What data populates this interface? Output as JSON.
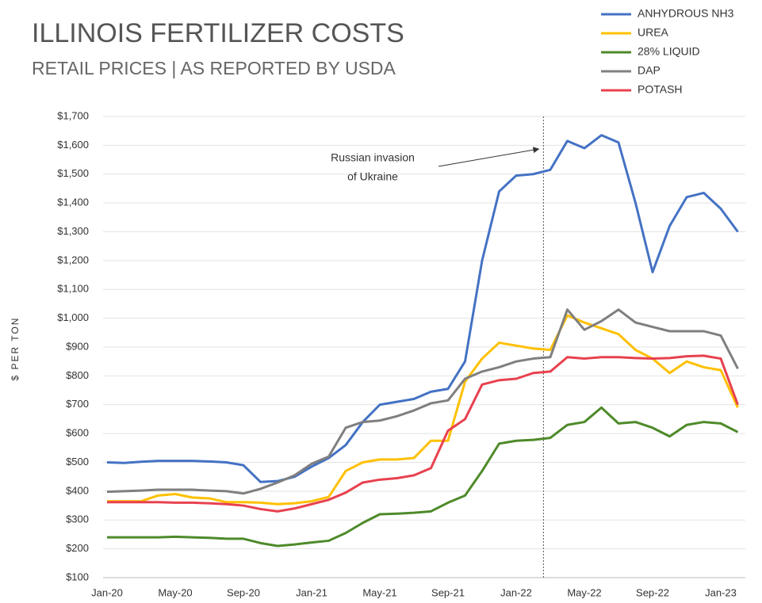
{
  "chart_data": {
    "type": "line",
    "title": "ILLINOIS FERTILIZER COSTS",
    "subtitle": "RETAIL PRICES | AS REPORTED BY USDA",
    "y_label": "$ PER TON",
    "categories": [
      "Jan-20",
      null,
      null,
      null,
      "May-20",
      null,
      null,
      null,
      "Sep-20",
      null,
      null,
      null,
      "Jan-21",
      null,
      null,
      null,
      "May-21",
      null,
      null,
      null,
      "Sep-21",
      null,
      null,
      null,
      "Jan-22",
      null,
      null,
      null,
      "May-22",
      null,
      null,
      null,
      "Sep-22",
      null,
      null,
      null,
      "Jan-23",
      null
    ],
    "ylim": [
      100,
      1700
    ],
    "yticks": [
      {
        "value": 100,
        "label": "$100"
      },
      {
        "value": 200,
        "label": "$200"
      },
      {
        "value": 300,
        "label": "$300"
      },
      {
        "value": 400,
        "label": "$400"
      },
      {
        "value": 500,
        "label": "$500"
      },
      {
        "value": 600,
        "label": "$600"
      },
      {
        "value": 700,
        "label": "$700"
      },
      {
        "value": 800,
        "label": "$800"
      },
      {
        "value": 900,
        "label": "$900"
      },
      {
        "value": 1000,
        "label": "$1,000"
      },
      {
        "value": 1100,
        "label": "$1,100"
      },
      {
        "value": 1200,
        "label": "$1,200"
      },
      {
        "value": 1300,
        "label": "$1,300"
      },
      {
        "value": 1400,
        "label": "$1,400"
      },
      {
        "value": 1500,
        "label": "$1,500"
      },
      {
        "value": 1600,
        "label": "$1,600"
      },
      {
        "value": 1700,
        "label": "$1,700"
      }
    ],
    "grid": true,
    "legend": "top-right",
    "annotation": {
      "lines": [
        "Russian invasion",
        "of Ukraine"
      ],
      "x": 25.6
    },
    "series": [
      {
        "name": "ANHYDROUS NH3",
        "color": "#4472c4",
        "values": [
          500,
          498,
          502,
          505,
          505,
          505,
          503,
          500,
          490,
          432,
          435,
          450,
          485,
          515,
          560,
          640,
          700,
          710,
          720,
          745,
          755,
          850,
          1200,
          1440,
          1495,
          1500,
          1515,
          1615,
          1590,
          1635,
          1610,
          1400,
          1160,
          1320,
          1420,
          1435,
          1380,
          1300
        ]
      },
      {
        "name": "UREA",
        "color": "#ffc000",
        "values": [
          365,
          365,
          365,
          385,
          390,
          378,
          375,
          362,
          362,
          360,
          355,
          358,
          365,
          380,
          470,
          500,
          510,
          510,
          515,
          575,
          575,
          780,
          860,
          915,
          905,
          895,
          890,
          1010,
          985,
          965,
          945,
          890,
          860,
          810,
          850,
          830,
          820,
          690
        ]
      },
      {
        "name": "28% LIQUID",
        "color": "#4e8a2a",
        "values": [
          240,
          240,
          240,
          240,
          242,
          240,
          238,
          235,
          235,
          220,
          210,
          215,
          222,
          228,
          255,
          290,
          320,
          322,
          325,
          330,
          360,
          385,
          470,
          565,
          575,
          578,
          585,
          630,
          640,
          690,
          635,
          640,
          620,
          590,
          630,
          640,
          635,
          605
        ]
      },
      {
        "name": "DAP",
        "color": "#7f7f7f",
        "values": [
          398,
          400,
          402,
          405,
          405,
          405,
          402,
          400,
          392,
          408,
          430,
          455,
          495,
          520,
          620,
          640,
          645,
          660,
          680,
          705,
          715,
          790,
          815,
          830,
          850,
          860,
          865,
          1030,
          960,
          990,
          1030,
          985,
          970,
          955,
          955,
          955,
          940,
          825
        ]
      },
      {
        "name": "POTASH",
        "color": "#e8414f",
        "values": [
          362,
          362,
          362,
          362,
          360,
          360,
          358,
          355,
          350,
          338,
          330,
          340,
          355,
          370,
          395,
          430,
          440,
          445,
          455,
          480,
          610,
          650,
          770,
          785,
          790,
          810,
          815,
          865,
          860,
          865,
          865,
          862,
          860,
          862,
          868,
          870,
          860,
          700
        ]
      }
    ]
  }
}
